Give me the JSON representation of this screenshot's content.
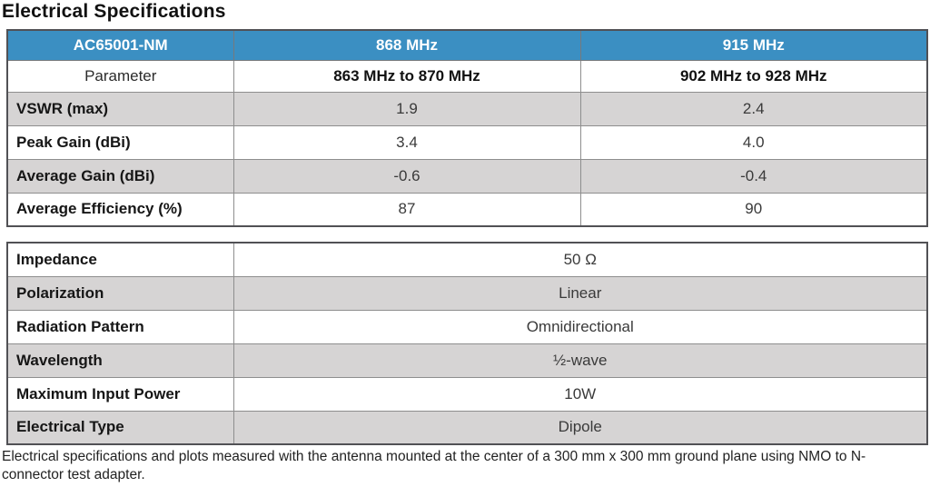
{
  "page_title": "Electrical Specifications",
  "colors": {
    "header_blue": "#3b8fc2",
    "row_gray": "#d6d4d4"
  },
  "table1": {
    "header": {
      "model": "AC65001-NM",
      "band1": "868 MHz",
      "band2": "915 MHz"
    },
    "subheader": {
      "label": "Parameter",
      "range1": "863 MHz to 870 MHz",
      "range2": "902 MHz to 928 MHz"
    },
    "rows": [
      {
        "label": "VSWR (max)",
        "v868": "1.9",
        "v915": "2.4"
      },
      {
        "label": "Peak Gain (dBi)",
        "v868": "3.4",
        "v915": "4.0"
      },
      {
        "label": "Average Gain (dBi)",
        "v868": "-0.6",
        "v915": "-0.4"
      },
      {
        "label": "Average Efficiency (%)",
        "v868": "87",
        "v915": "90"
      }
    ]
  },
  "table2": {
    "rows": [
      {
        "label": "Impedance",
        "value": "50 Ω"
      },
      {
        "label": "Polarization",
        "value": "Linear"
      },
      {
        "label": "Radiation Pattern",
        "value": "Omnidirectional"
      },
      {
        "label": "Wavelength",
        "value": "½-wave"
      },
      {
        "label": "Maximum Input Power",
        "value": "10W"
      },
      {
        "label": "Electrical Type",
        "value": "Dipole"
      }
    ]
  },
  "footnote": "Electrical specifications and plots measured with the antenna mounted at the center of a 300 mm x 300 mm ground plane using NMO to N-connector test adapter."
}
